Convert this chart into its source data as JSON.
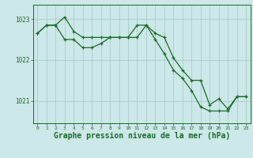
{
  "background_color": "#cce8e8",
  "grid_color": "#aacccc",
  "line_color": "#1a6b2a",
  "xlabel": "Graphe pression niveau de la mer (hPa)",
  "xlabel_fontsize": 7,
  "yticks": [
    1021,
    1022,
    1023
  ],
  "xticks": [
    0,
    1,
    2,
    3,
    4,
    5,
    6,
    7,
    8,
    9,
    10,
    11,
    12,
    13,
    14,
    15,
    16,
    17,
    18,
    19,
    20,
    21,
    22,
    23
  ],
  "ylim": [
    1020.45,
    1023.35
  ],
  "xlim": [
    -0.5,
    23.5
  ],
  "line1_x": [
    0,
    1,
    2,
    3,
    4,
    5,
    6,
    7,
    8,
    9,
    10,
    11,
    12,
    13,
    14,
    15,
    16,
    17,
    18,
    19,
    20,
    21,
    22,
    23
  ],
  "line1_y": [
    1022.65,
    1022.85,
    1022.85,
    1023.05,
    1022.7,
    1022.55,
    1022.55,
    1022.55,
    1022.55,
    1022.55,
    1022.55,
    1022.85,
    1022.85,
    1022.65,
    1022.55,
    1022.05,
    1021.75,
    1021.5,
    1021.5,
    1020.9,
    1021.05,
    1020.8,
    1021.1,
    1021.1
  ],
  "line2_x": [
    0,
    1,
    2,
    3,
    4,
    5,
    6,
    7,
    8,
    9,
    10,
    11,
    12,
    13,
    14,
    15,
    16,
    17,
    18,
    19,
    20,
    21,
    22,
    23
  ],
  "line2_y": [
    1022.65,
    1022.85,
    1022.85,
    1022.5,
    1022.5,
    1022.3,
    1022.3,
    1022.4,
    1022.55,
    1022.55,
    1022.55,
    1022.55,
    1022.85,
    1022.5,
    1022.15,
    1021.75,
    1021.55,
    1021.25,
    1020.85,
    1020.75,
    1020.75,
    1020.75,
    1021.1,
    1021.1
  ]
}
